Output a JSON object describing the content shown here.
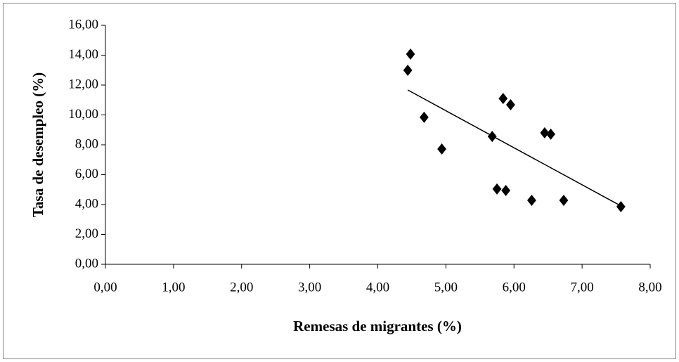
{
  "chart_data": {
    "type": "scatter",
    "x_label": "Remesas de migrantes (%)",
    "y_label": "Tasa de desempleo (%)",
    "x": [
      4.44,
      4.48,
      4.68,
      4.94,
      5.68,
      5.75,
      5.84,
      5.88,
      5.95,
      6.26,
      6.45,
      6.54,
      6.73,
      7.57
    ],
    "values": [
      12.99,
      14.07,
      9.84,
      7.72,
      8.56,
      5.04,
      11.1,
      4.94,
      10.68,
      4.28,
      8.8,
      8.71,
      4.28,
      3.86
    ],
    "color": "#000000",
    "trendline": {
      "x": [
        4.44,
        7.57
      ],
      "values": [
        11.67,
        3.91
      ],
      "color": "#000000"
    },
    "xlim": [
      0,
      8
    ],
    "ylim": [
      0,
      16
    ],
    "xticks": [
      {
        "value": 0,
        "label": "0,00"
      },
      {
        "value": 1,
        "label": "1,00"
      },
      {
        "value": 2,
        "label": "2,00"
      },
      {
        "value": 3,
        "label": "3,00"
      },
      {
        "value": 4,
        "label": "4,00"
      },
      {
        "value": 5,
        "label": "5,00"
      },
      {
        "value": 6,
        "label": "6,00"
      },
      {
        "value": 7,
        "label": "7,00"
      },
      {
        "value": 8,
        "label": "8,00"
      }
    ],
    "yticks": [
      {
        "value": 0,
        "label": "0,00"
      },
      {
        "value": 2,
        "label": "2,00"
      },
      {
        "value": 4,
        "label": "4,00"
      },
      {
        "value": 6,
        "label": "6,00"
      },
      {
        "value": 8,
        "label": "8,00"
      },
      {
        "value": 10,
        "label": "10,00"
      },
      {
        "value": 12,
        "label": "12,00"
      },
      {
        "value": 14,
        "label": "14,00"
      },
      {
        "value": 16,
        "label": "16,00"
      }
    ],
    "grid": false
  }
}
